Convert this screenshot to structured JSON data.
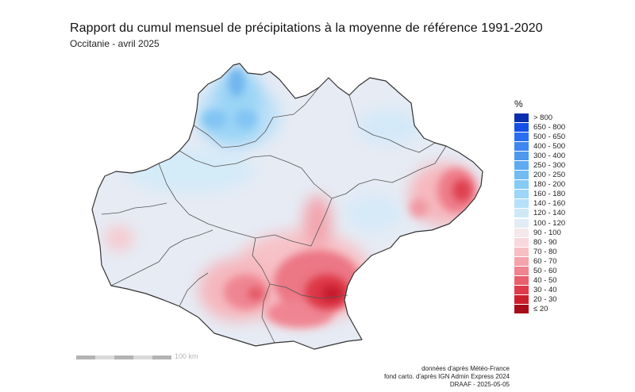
{
  "header": {
    "title": "Rapport du cumul mensuel de précipitations à la moyenne de référence 1991-2020",
    "subtitle": "Occitanie - avril 2025"
  },
  "legend": {
    "title": "%",
    "items": [
      {
        "label": "> 800",
        "color": "#0a2fae"
      },
      {
        "label": "650 - 800",
        "color": "#1450e6"
      },
      {
        "label": "500 - 650",
        "color": "#2a6ef2"
      },
      {
        "label": "400 - 500",
        "color": "#3e86f0"
      },
      {
        "label": "300 - 400",
        "color": "#4f98ee"
      },
      {
        "label": "250 - 300",
        "color": "#5faaf0"
      },
      {
        "label": "200 - 250",
        "color": "#72bcf3"
      },
      {
        "label": "180 - 200",
        "color": "#86caf6"
      },
      {
        "label": "160 - 180",
        "color": "#9dd6f8"
      },
      {
        "label": "140 - 160",
        "color": "#b6e1f9"
      },
      {
        "label": "120 - 140",
        "color": "#cde9f8"
      },
      {
        "label": "100 - 120",
        "color": "#e3ebf4"
      },
      {
        "label": "90 - 100",
        "color": "#f4e8eb"
      },
      {
        "label": "80 - 90",
        "color": "#f8d8dc"
      },
      {
        "label": "70 - 80",
        "color": "#f7bfc4"
      },
      {
        "label": "60 - 70",
        "color": "#f4a3ab"
      },
      {
        "label": "50 - 60",
        "color": "#ef838e"
      },
      {
        "label": "40 - 50",
        "color": "#e85f6d"
      },
      {
        "label": "30 - 40",
        "color": "#df3b4b"
      },
      {
        "label": "20 - 30",
        "color": "#cc1f2d"
      },
      {
        "label": "≤ 20",
        "color": "#a70d18"
      }
    ]
  },
  "scale": {
    "label": "100 km"
  },
  "credits": {
    "line1": "données d'après Météo-France",
    "line2": "fond carto. d'après IGN Admin Express 2024",
    "line3": "DRAAF - 2025-05-05"
  }
}
